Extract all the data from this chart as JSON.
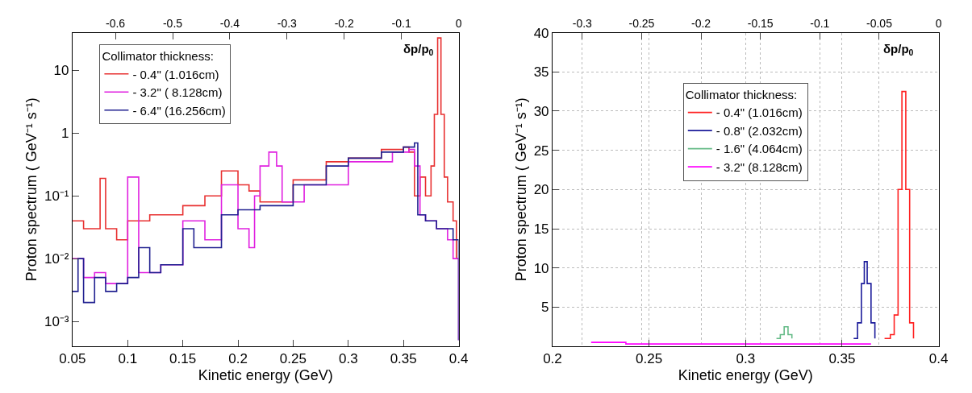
{
  "chart_data": [
    {
      "type": "step",
      "xlabel": "Kinetic energy (GeV)",
      "ylabel": "Proton spectrum ( GeV⁻¹ s⁻¹)",
      "legend_title": "Collimator thickness:",
      "legend": "top left",
      "log": "y",
      "grid": false,
      "annotations": [
        "δp/p$_{0}$"
      ],
      "xlim": [
        0.05,
        0.4
      ],
      "xticks": [
        0.05,
        0.1,
        0.15,
        0.2,
        0.25,
        0.3,
        0.35,
        0.4
      ],
      "ylim": [
        0.0004,
        40
      ],
      "yticks": [
        {
          "value": 0.001,
          "label": "10⁻³"
        },
        {
          "value": 0.01,
          "label": "10⁻²"
        },
        {
          "value": 0.1,
          "label": "10⁻¹"
        },
        1,
        10
      ],
      "x2lim": [
        -0.675,
        0
      ],
      "x2ticks": [
        -0.6,
        -0.5,
        -0.4,
        -0.3,
        -0.2,
        -0.1,
        0
      ],
      "series": [
        {
          "name": "- 0.4\" (1.016cm)",
          "color": "#e83030",
          "x": [
            0.05,
            0.06,
            0.075,
            0.08,
            0.09,
            0.1,
            0.12,
            0.15,
            0.17,
            0.185,
            0.2,
            0.21,
            0.22,
            0.25,
            0.28,
            0.3,
            0.33,
            0.35,
            0.355,
            0.36,
            0.365,
            0.37,
            0.375,
            0.378,
            0.381,
            0.384,
            0.387,
            0.39,
            0.395,
            0.398
          ],
          "values": [
            0.04,
            0.03,
            0.19,
            0.03,
            0.02,
            0.04,
            0.05,
            0.07,
            0.1,
            0.25,
            0.15,
            0.12,
            0.08,
            0.18,
            0.35,
            0.4,
            0.55,
            0.6,
            0.5,
            0.1,
            0.2,
            0.1,
            0.3,
            2,
            33,
            2,
            0.2,
            0.08,
            0.04,
            0.01
          ]
        },
        {
          "name": "- 3.2\" ( 8.128cm)",
          "color": "#e020e0",
          "x": [
            0.05,
            0.06,
            0.07,
            0.08,
            0.1,
            0.11,
            0.13,
            0.15,
            0.17,
            0.185,
            0.2,
            0.21,
            0.215,
            0.22,
            0.228,
            0.235,
            0.24,
            0.26,
            0.3,
            0.34,
            0.355,
            0.36,
            0.365,
            0.37,
            0.38,
            0.39,
            0.395,
            0.4
          ],
          "values": [
            0.01,
            0.005,
            0.006,
            0.004,
            0.2,
            0.006,
            0.008,
            0.04,
            0.02,
            0.15,
            0.03,
            0.015,
            0.1,
            0.3,
            0.5,
            0.3,
            0.08,
            0.15,
            0.35,
            0.5,
            0.55,
            0.3,
            0.05,
            0.04,
            0.03,
            0.02,
            0.01,
            0.0005
          ]
        },
        {
          "name": "- 6.4\" (16.256cm)",
          "color": "#202090",
          "x": [
            0.05,
            0.055,
            0.06,
            0.07,
            0.08,
            0.09,
            0.1,
            0.11,
            0.12,
            0.13,
            0.15,
            0.16,
            0.185,
            0.2,
            0.22,
            0.25,
            0.28,
            0.3,
            0.33,
            0.35,
            0.36,
            0.363,
            0.37,
            0.38,
            0.39,
            0.395,
            0.4
          ],
          "values": [
            0.003,
            0.01,
            0.002,
            0.005,
            0.003,
            0.004,
            0.005,
            0.015,
            0.006,
            0.008,
            0.03,
            0.015,
            0.05,
            0.06,
            0.07,
            0.15,
            0.3,
            0.4,
            0.5,
            0.6,
            0.7,
            0.05,
            0.04,
            0.03,
            0.03,
            0.02,
            0.0005
          ]
        }
      ]
    },
    {
      "type": "step",
      "xlabel": "Kinetic energy (GeV)",
      "ylabel": "Proton spectrum ( GeV⁻¹ s⁻¹)",
      "legend_title": "Collimator thickness:",
      "legend": "top",
      "grid": true,
      "annotations": [
        "δp/p$_{0}$"
      ],
      "xlim": [
        0.2,
        0.4
      ],
      "xticks": [
        0.2,
        0.25,
        0.3,
        0.35,
        0.4
      ],
      "ylim": [
        0,
        40
      ],
      "yticks": [
        5,
        10,
        15,
        20,
        25,
        30,
        35,
        40
      ],
      "x2lim": [
        -0.325,
        0
      ],
      "x2ticks": [
        -0.3,
        -0.25,
        -0.2,
        -0.15,
        -0.1,
        -0.05,
        0
      ],
      "series": [
        {
          "name": "- 0.4\" (1.016cm)",
          "color": "#ff2020",
          "x": [
            0.372,
            0.375,
            0.377,
            0.379,
            0.381,
            0.383,
            0.385,
            0.387
          ],
          "values": [
            1,
            1.5,
            4,
            20,
            32.5,
            20,
            3,
            1
          ]
        },
        {
          "name": "- 0.8\" (2.032cm)",
          "color": "#1a1a9a",
          "x": [
            0.356,
            0.358,
            0.36,
            0.3615,
            0.363,
            0.365,
            0.367
          ],
          "values": [
            1,
            3,
            8,
            10.8,
            8,
            3,
            1
          ]
        },
        {
          "name": "- 1.6\" (4.064cm)",
          "color": "#66bb88",
          "x": [
            0.316,
            0.318,
            0.32,
            0.322,
            0.324
          ],
          "values": [
            1,
            1.5,
            2.5,
            1.5,
            1
          ]
        },
        {
          "name": "- 3.2\" (8.128cm)",
          "color": "#ff00ff",
          "x": [
            0.22,
            0.238,
            0.365
          ],
          "values": [
            0.5,
            0.3,
            0.3
          ]
        }
      ]
    }
  ]
}
